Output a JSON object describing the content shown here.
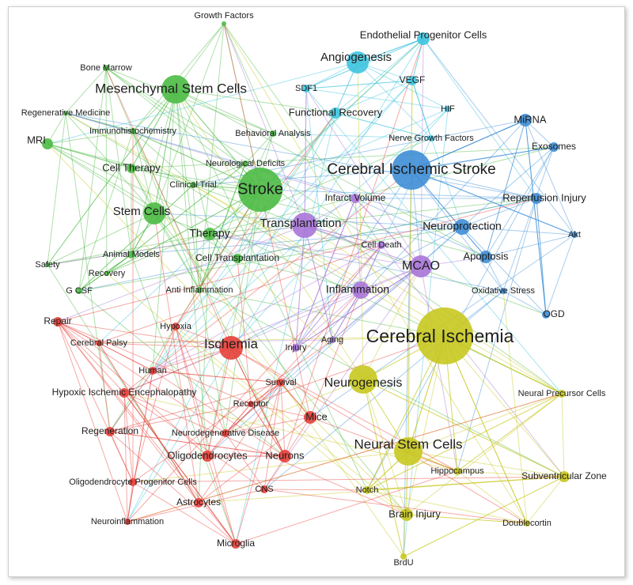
{
  "clusters": [
    {
      "color": "#4dbb45",
      "nodes": [
        "Growth Factors",
        "Bone Marrow",
        "Mesenchymal Stem Cells",
        "Regenerative Medicine",
        "Immunohistochemistry",
        "MRI",
        "Cell Therapy",
        "Stroke",
        "Clinical Trial",
        "Neurological Deficits",
        "Stem Cells",
        "Therapy",
        "Cell Transplantation",
        "Animal Models",
        "Safety",
        "Recovery",
        "G CSF",
        "Anti Inflammation",
        "Behavioral Analysis"
      ]
    },
    {
      "color": "#3ec4df",
      "nodes": [
        "Endothelial Progenitor Cells",
        "Angiogenesis",
        "VEGF",
        "SDF1",
        "Functional Recovery",
        "HIF",
        "Nerve Growth Factors"
      ]
    },
    {
      "color": "#3f8ed6",
      "nodes": [
        "MiRNA",
        "Exosomes",
        "Cerebral Ischemic Stroke",
        "Reperfusion Injury",
        "Neuroprotection",
        "Akt",
        "Apoptosis",
        "Oxidative Stress",
        "OGD"
      ]
    },
    {
      "color": "#a875d8",
      "nodes": [
        "Infarct Volume",
        "Transplantation",
        "Cell Death",
        "MCAO",
        "Inflammation",
        "Aging",
        "Injury"
      ]
    },
    {
      "color": "#c8c820",
      "nodes": [
        "Cerebral Ischemia",
        "Neurogenesis",
        "Neural Precursor Cells",
        "Neural Stem Cells",
        "Hippocampus",
        "Subventricular Zone",
        "Notch",
        "Brain Injury",
        "Doublecortin",
        "BrdU"
      ]
    },
    {
      "color": "#e6403a",
      "nodes": [
        "Repair",
        "Hypoxia",
        "Cerebral Palsy",
        "Ischemia",
        "Human",
        "Survival",
        "Hypoxic Ischemic Encephalopathy",
        "Receptor",
        "Mice",
        "Regeneration",
        "Neurodegenerative Disease",
        "Oligodendrocytes",
        "Neurons",
        "Oligodendrocyte Progenitor Cells",
        "Astrocytes",
        "CNS",
        "Neuroinflammation",
        "Microglia"
      ]
    }
  ]
}
